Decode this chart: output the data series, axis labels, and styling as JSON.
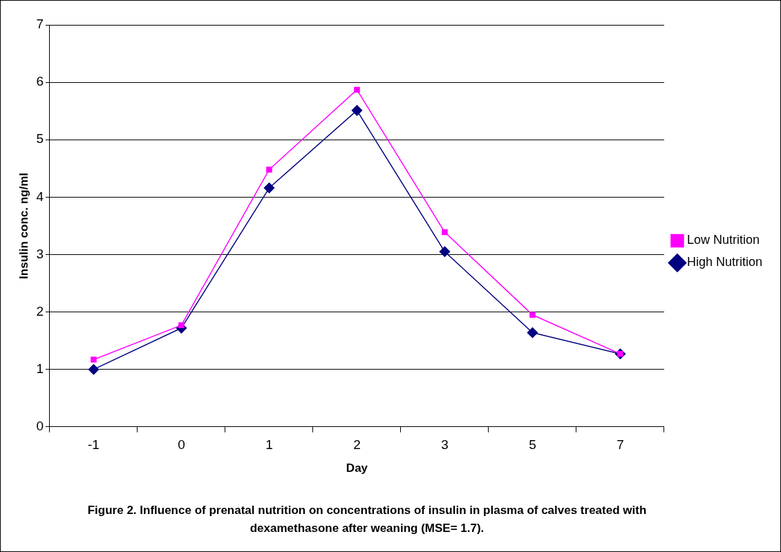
{
  "chart_data": {
    "type": "line",
    "xlabel": "Day",
    "ylabel": "Insulin conc. ng/ml",
    "categories": [
      "-1",
      "0",
      "1",
      "2",
      "3",
      "5",
      "7"
    ],
    "series": [
      {
        "name": "High Nutrition",
        "color": "#000080",
        "marker": "diamond",
        "values": [
          1.0,
          1.72,
          4.16,
          5.51,
          3.05,
          1.64,
          1.27
        ]
      },
      {
        "name": "Low Nutrition",
        "color": "#ff00ff",
        "marker": "square",
        "values": [
          1.17,
          1.77,
          4.48,
          5.87,
          3.39,
          1.95,
          1.27
        ]
      }
    ],
    "ylim": [
      0,
      7
    ],
    "yticks": [
      0,
      1,
      2,
      3,
      4,
      5,
      6,
      7
    ],
    "grid": "y",
    "legend": "right",
    "annotations": [
      "Figure 2. Influence of prenatal nutrition on concentrations of insulin in plasma of calves treated with dexamethasone after weaning (MSE= 1.7)."
    ]
  }
}
